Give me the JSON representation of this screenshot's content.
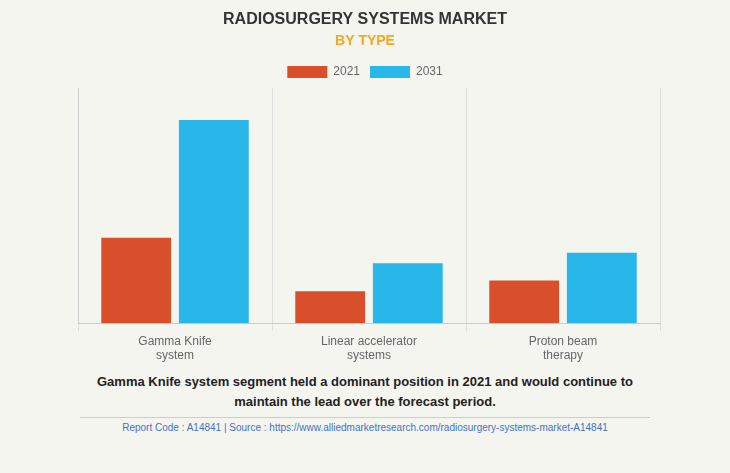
{
  "chart_data": {
    "type": "bar",
    "title": "RADIOSURGERY SYSTEMS MARKET",
    "subtitle": "BY TYPE",
    "categories": [
      "Gamma Knife\nsystem",
      "Linear accelerator\nsystems",
      "Proton beam\ntherapy"
    ],
    "series": [
      {
        "name": "2021",
        "color": "#d94f2b",
        "values": [
          4.0,
          1.5,
          2.0
        ]
      },
      {
        "name": "2031",
        "color": "#29b6e8",
        "values": [
          9.5,
          2.8,
          3.3
        ]
      }
    ],
    "ylim": [
      0,
      11
    ],
    "grid": "x",
    "tick_labels": "x",
    "legend": "top",
    "annotations": [
      "Gamma Knife system segment held a dominant position in 2021 and would continue to\nmaintain the lead over the forecast period.",
      "Report Code : A14841  |  Source : https://www.alliedmarketresearch.com/radiosurgery-systems-market-A14841"
    ]
  }
}
